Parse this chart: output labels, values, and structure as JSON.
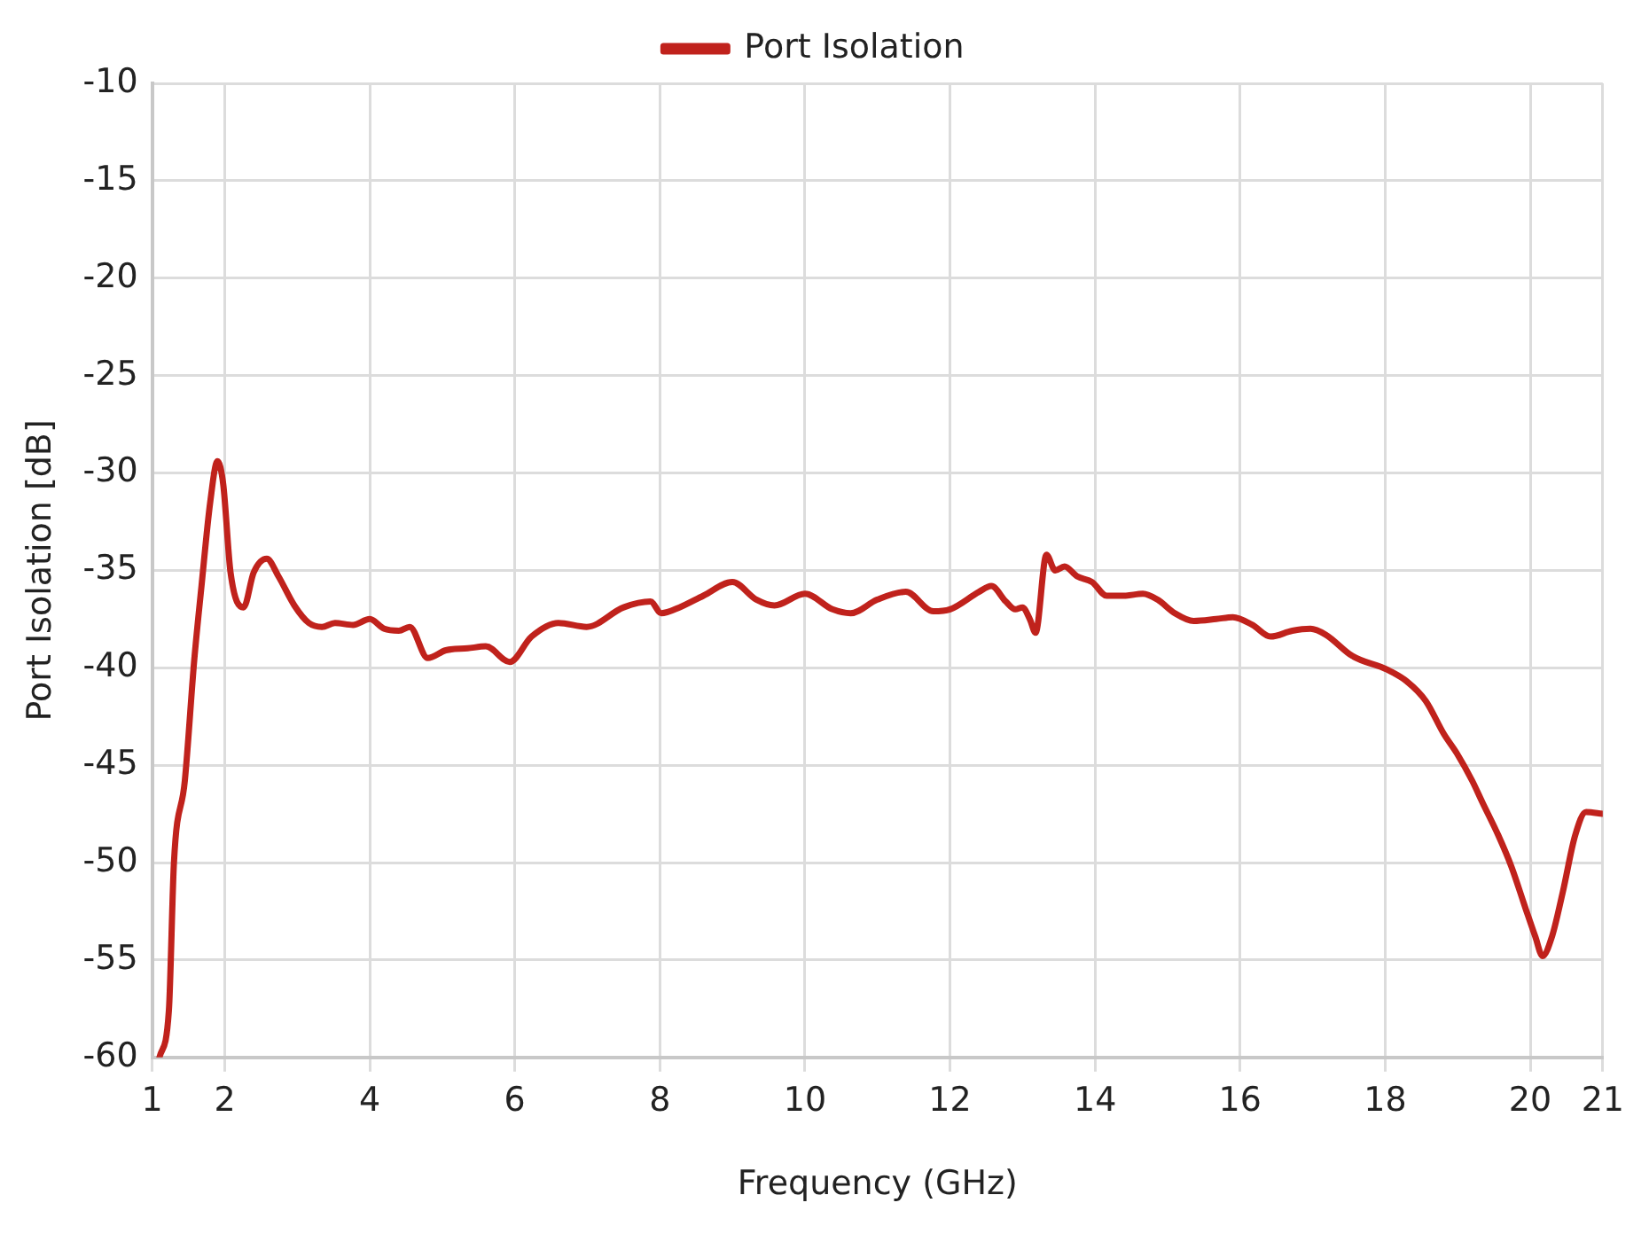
{
  "chart_data": {
    "type": "line",
    "xlabel": "Frequency (GHz)",
    "ylabel": "Port Isolation [dB]",
    "xlim": [
      1,
      21
    ],
    "xticks": [
      1,
      2,
      4,
      6,
      8,
      10,
      12,
      14,
      16,
      18,
      20,
      21
    ],
    "ylim": [
      -60,
      -10
    ],
    "yticks": [
      -60,
      -55,
      -50,
      -45,
      -40,
      -35,
      -30,
      -25,
      -20,
      -15,
      -10
    ],
    "grid": true,
    "legend": "top",
    "marker": "none",
    "line_style": "solid",
    "series": [
      {
        "name": "Port Isolation",
        "color": "#c0221c",
        "x": [
          1.1,
          1.23,
          1.3,
          1.45,
          1.58,
          1.68,
          1.8,
          1.9,
          1.98,
          2.08,
          2.26,
          2.4,
          2.58,
          2.74,
          2.96,
          3.16,
          3.34,
          3.52,
          3.77,
          4.0,
          4.2,
          4.4,
          4.55,
          4.8,
          5.05,
          5.35,
          5.6,
          5.93,
          6.23,
          6.6,
          6.99,
          7.5,
          7.87,
          8.02,
          8.27,
          8.6,
          9.0,
          9.33,
          9.58,
          10.0,
          10.38,
          10.63,
          11.0,
          11.39,
          11.77,
          12.0,
          12.4,
          12.57,
          12.77,
          12.9,
          13.0,
          13.1,
          13.18,
          13.33,
          13.45,
          13.58,
          13.75,
          13.96,
          14.16,
          14.4,
          14.66,
          14.86,
          15.1,
          15.36,
          15.67,
          15.9,
          16.17,
          16.42,
          16.72,
          16.97,
          17.18,
          17.55,
          18.03,
          18.3,
          18.56,
          18.81,
          18.99,
          19.2,
          19.34,
          19.56,
          19.74,
          19.94,
          20.07,
          20.17,
          20.3,
          20.45,
          20.62,
          20.77,
          21.0
        ],
        "values": [
          -60,
          -57.6,
          -50,
          -45.8,
          -39.6,
          -35.8,
          -31.5,
          -29.4,
          -30.6,
          -35.1,
          -36.9,
          -35.1,
          -34.4,
          -35.3,
          -36.8,
          -37.7,
          -37.9,
          -37.7,
          -37.8,
          -37.5,
          -38,
          -38.1,
          -37.9,
          -39.5,
          -39.1,
          -39,
          -38.9,
          -39.7,
          -38.4,
          -37.7,
          -37.9,
          -36.9,
          -36.6,
          -37.2,
          -36.9,
          -36.3,
          -35.6,
          -36.5,
          -36.8,
          -36.2,
          -37,
          -37.2,
          -36.5,
          -36.1,
          -37.1,
          -37,
          -36.1,
          -35.8,
          -36.6,
          -37,
          -36.9,
          -37.5,
          -38.2,
          -34.2,
          -35,
          -34.8,
          -35.3,
          -35.6,
          -36.3,
          -36.3,
          -36.2,
          -36.5,
          -37.2,
          -37.6,
          -37.5,
          -37.4,
          -37.8,
          -38.4,
          -38.1,
          -38,
          -38.3,
          -39.4,
          -40.1,
          -40.7,
          -41.7,
          -43.4,
          -44.4,
          -45.8,
          -46.9,
          -48.6,
          -50.2,
          -52.4,
          -53.8,
          -54.8,
          -53.8,
          -51.5,
          -48.6,
          -47.4,
          -47.5
        ]
      }
    ]
  }
}
